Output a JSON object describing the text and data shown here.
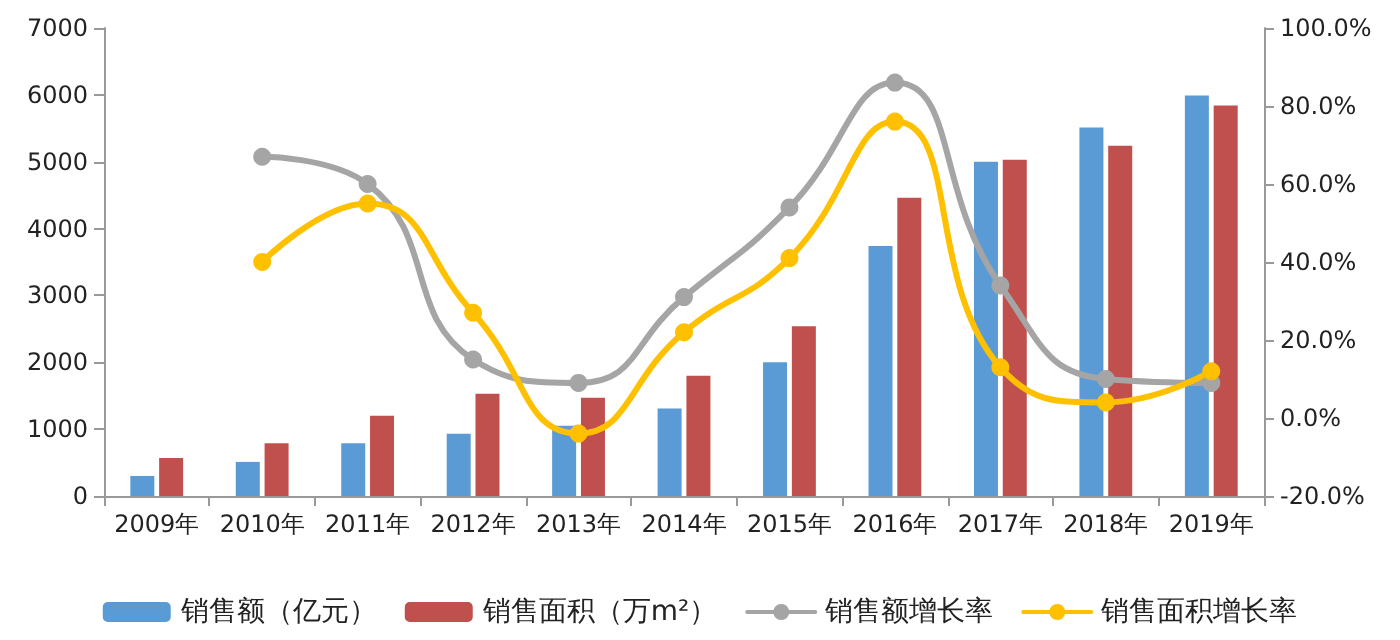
{
  "chart_data": {
    "type": "bar",
    "categories": [
      "2009年",
      "2010年",
      "2011年",
      "2012年",
      "2013年",
      "2014年",
      "2015年",
      "2016年",
      "2017年",
      "2018年",
      "2019年"
    ],
    "series": [
      {
        "name": "销售额（亿元）",
        "color": "#5b9bd5",
        "values": [
          300,
          510,
          790,
          930,
          1050,
          1310,
          2000,
          3740,
          5000,
          5510,
          5990
        ]
      },
      {
        "name": "销售面积（万m²）",
        "color": "#c0504d",
        "values": [
          570,
          790,
          1200,
          1530,
          1470,
          1800,
          2540,
          4460,
          5030,
          5240,
          5840
        ]
      },
      {
        "name": "销售额增长率",
        "type": "line",
        "axis": "y2",
        "color": "#a5a5a5",
        "values": [
          null,
          67,
          60,
          15,
          9,
          31,
          54,
          86,
          34,
          10,
          9
        ]
      },
      {
        "name": "销售面积增长率",
        "type": "line",
        "axis": "y2",
        "color": "#ffc000",
        "values": [
          null,
          40,
          55,
          27,
          -4,
          22,
          41,
          76,
          13,
          4,
          12
        ]
      }
    ],
    "ylim": [
      0,
      7000
    ],
    "yticks": [
      0,
      1000,
      2000,
      3000,
      4000,
      5000,
      6000,
      7000
    ],
    "y2lim": [
      -20,
      100
    ],
    "y2ticks": [
      {
        "value": -20,
        "label": "-20.0%"
      },
      {
        "value": 0,
        "label": "0.0%"
      },
      {
        "value": 20,
        "label": "20.0%"
      },
      {
        "value": 40,
        "label": "40.0%"
      },
      {
        "value": 60,
        "label": "60.0%"
      },
      {
        "value": 80,
        "label": "80.0%"
      },
      {
        "value": 100,
        "label": "100.0%"
      }
    ],
    "legend": "bottom",
    "marker": "circle",
    "grid": false
  }
}
